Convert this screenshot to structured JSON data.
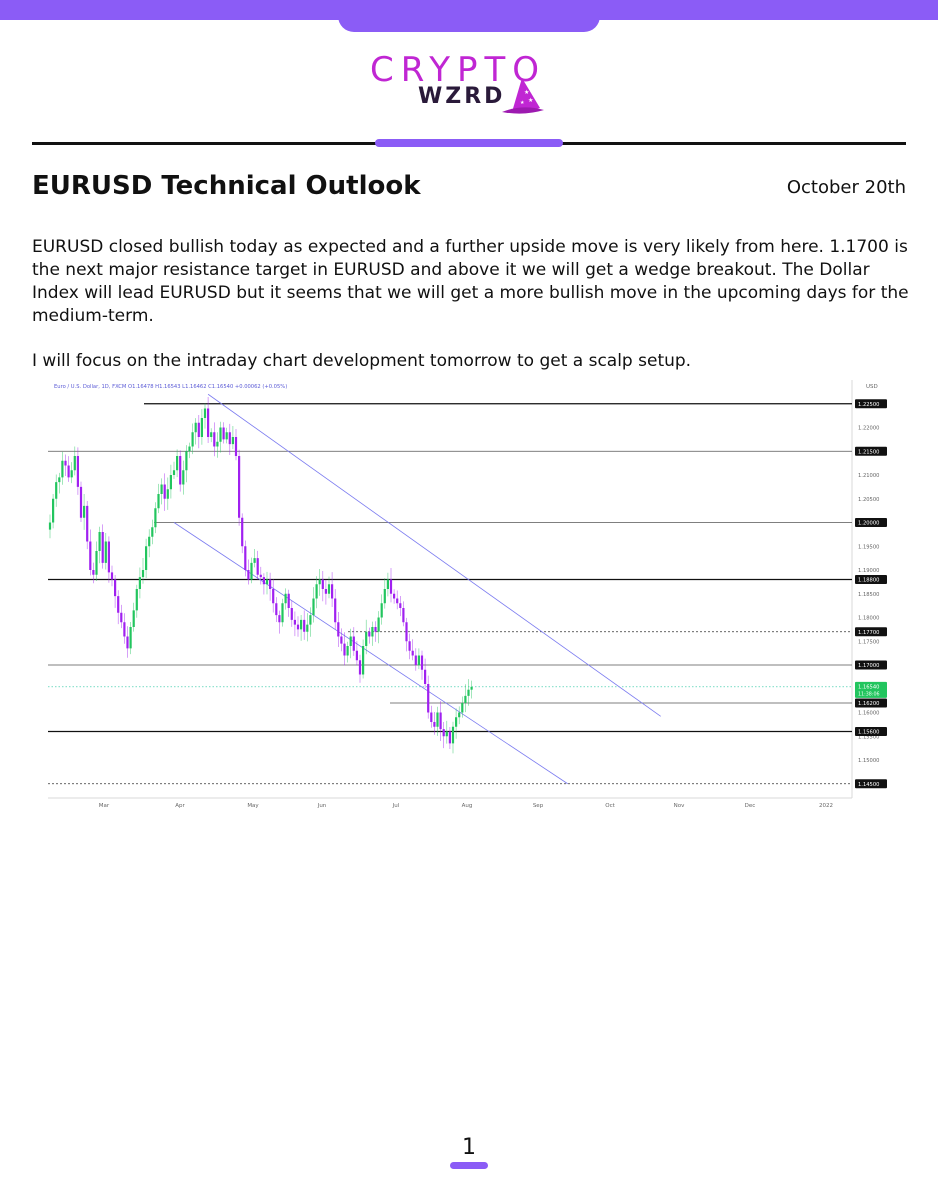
{
  "brand": {
    "name_top": "CRYPTO",
    "name_bottom": "WZRD",
    "colors": {
      "accent": "#8b5cf6",
      "logo": "#c026d3",
      "dark": "#2a1a3a"
    }
  },
  "header": {
    "title": "EURUSD Technical Outlook",
    "date": "October 20th"
  },
  "body": {
    "paragraph1": "EURUSD closed bullish today as expected and a further upside move is very likely from here. 1.1700 is the next major resistance target in EURUSD and above it we will get a wedge breakout. The Dollar Index will lead EURUSD but it seems that we will get a more bullish move in the upcoming days for the medium-term.",
    "paragraph2": "I will focus on the intraday chart development tomorrow to get a scalp setup."
  },
  "chart_data": {
    "type": "candlestick",
    "title": "Euro / U.S. Dollar, 1D, FXCM",
    "ohlc_header": "O1.16478 H1.16543 L1.16462 C1.16540 +0.00062 (+0.05%)",
    "currency": "USD",
    "x_ticks": [
      "Mar",
      "Apr",
      "May",
      "Jun",
      "Jul",
      "Aug",
      "Sep",
      "Oct",
      "Nov",
      "Dec",
      "2022"
    ],
    "y_ticks": [
      "1.22000",
      "1.21000",
      "1.20500",
      "1.19500",
      "1.19000",
      "1.18500",
      "1.18000",
      "1.17500",
      "1.16000",
      "1.15500",
      "1.15000"
    ],
    "ylim": [
      1.142,
      1.23
    ],
    "levels": [
      {
        "value": 1.225,
        "label": "1.22500",
        "style": "solid-dark"
      },
      {
        "value": 1.215,
        "label": "1.21500",
        "style": "solid"
      },
      {
        "value": 1.2,
        "label": "1.20000",
        "style": "solid"
      },
      {
        "value": 1.188,
        "label": "1.18800",
        "style": "solid-dark"
      },
      {
        "value": 1.177,
        "label": "1.17700",
        "style": "dotted"
      },
      {
        "value": 1.17,
        "label": "1.17000",
        "style": "solid"
      },
      {
        "value": 1.162,
        "label": "1.16200",
        "style": "solid"
      },
      {
        "value": 1.156,
        "label": "1.15600",
        "style": "solid-dark"
      },
      {
        "value": 1.145,
        "label": "1.14500",
        "style": "dotted"
      }
    ],
    "current_price": {
      "value": 1.1654,
      "label": "1.16540",
      "countdown": "11:38:06"
    },
    "closes": [
      1.2,
      1.205,
      1.2085,
      1.2095,
      1.213,
      1.212,
      1.2095,
      1.211,
      1.214,
      1.2075,
      1.201,
      1.2035,
      1.196,
      1.19,
      1.189,
      1.194,
      1.198,
      1.1915,
      1.196,
      1.1895,
      1.188,
      1.1845,
      1.181,
      1.179,
      1.176,
      1.1735,
      1.178,
      1.1815,
      1.186,
      1.1885,
      1.19,
      1.195,
      1.197,
      1.199,
      1.203,
      1.206,
      1.208,
      1.205,
      1.207,
      1.21,
      1.211,
      1.214,
      1.208,
      1.211,
      1.215,
      1.216,
      1.219,
      1.221,
      1.218,
      1.222,
      1.224,
      1.218,
      1.219,
      1.216,
      1.217,
      1.22,
      1.2175,
      1.219,
      1.2165,
      1.218,
      1.214,
      1.201,
      1.195,
      1.19,
      1.188,
      1.1915,
      1.1925,
      1.189,
      1.1885,
      1.187,
      1.188,
      1.186,
      1.183,
      1.1805,
      1.179,
      1.183,
      1.185,
      1.182,
      1.1795,
      1.1785,
      1.1775,
      1.1795,
      1.177,
      1.1785,
      1.1805,
      1.184,
      1.187,
      1.188,
      1.186,
      1.185,
      1.187,
      1.184,
      1.179,
      1.176,
      1.1745,
      1.172,
      1.174,
      1.176,
      1.173,
      1.171,
      1.168,
      1.174,
      1.177,
      1.176,
      1.178,
      1.177,
      1.18,
      1.183,
      1.186,
      1.188,
      1.185,
      1.184,
      1.183,
      1.182,
      1.179,
      1.175,
      1.173,
      1.172,
      1.17,
      1.172,
      1.169,
      1.166,
      1.16,
      1.158,
      1.157,
      1.16,
      1.1565,
      1.155,
      1.156,
      1.1535,
      1.157,
      1.159,
      1.16,
      1.162,
      1.1635,
      1.1648,
      1.1654
    ],
    "trendlines": [
      {
        "name": "upper",
        "from": {
          "index": 51,
          "value": 1.227
        },
        "to": {
          "index": 197,
          "value": 1.1592
        }
      },
      {
        "name": "lower",
        "from": {
          "index": 40,
          "value": 1.2
        },
        "to": {
          "index": 167,
          "value": 1.145
        }
      }
    ]
  },
  "footer": {
    "page_number": "1"
  }
}
